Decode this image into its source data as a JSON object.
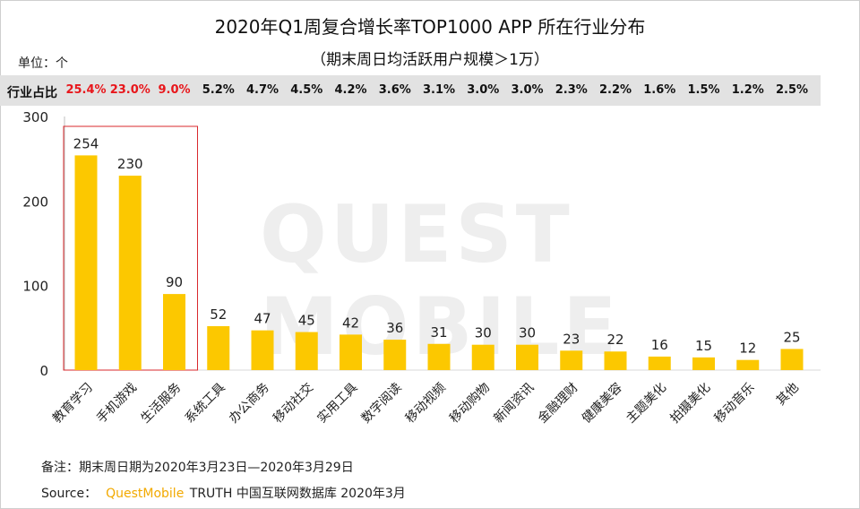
{
  "title": "2020年Q1周复合增长率TOP1000 APP 所在行业分布",
  "subtitle": "（期末周日均活跃用户规模＞1万）",
  "unit_label": "单位：个",
  "share_row": {
    "label": "行业占比",
    "values": [
      "25.4%",
      "23.0%",
      "9.0%",
      "5.2%",
      "4.7%",
      "4.5%",
      "4.2%",
      "3.6%",
      "3.1%",
      "3.0%",
      "3.0%",
      "2.3%",
      "2.2%",
      "1.6%",
      "1.5%",
      "1.2%",
      "2.5%"
    ],
    "highlight_color": "#e8161b"
  },
  "watermark": "QUEST MOBILE",
  "note": "备注：期末周日期为2020年3月23日—2020年3月29日",
  "source": {
    "prefix": "Source：",
    "brand": "QuestMobile",
    "suffix": "TRUTH 中国互联网数据库 2020年3月"
  },
  "colors": {
    "bar": "#fcc800",
    "highlight_box": "#d9282e",
    "share_bg": "#e2e2e2"
  },
  "chart_data": {
    "type": "bar",
    "categories": [
      "教育学习",
      "手机游戏",
      "生活服务",
      "系统工具",
      "办公商务",
      "移动社交",
      "实用工具",
      "数字阅读",
      "移动视频",
      "移动购物",
      "新闻资讯",
      "金融理财",
      "健康美容",
      "主题美化",
      "拍摄美化",
      "移动音乐",
      "其他"
    ],
    "values": [
      254,
      230,
      90,
      52,
      47,
      45,
      42,
      36,
      31,
      30,
      30,
      23,
      22,
      16,
      15,
      12,
      25
    ],
    "yticks": [
      0,
      100,
      200,
      300
    ],
    "ylim": [
      0,
      300
    ],
    "highlighted_categories": [
      "教育学习",
      "手机游戏",
      "生活服务"
    ],
    "title": "2020年Q1周复合增长率TOP1000 APP 所在行业分布",
    "xlabel": "",
    "ylabel": "",
    "grid": false
  }
}
